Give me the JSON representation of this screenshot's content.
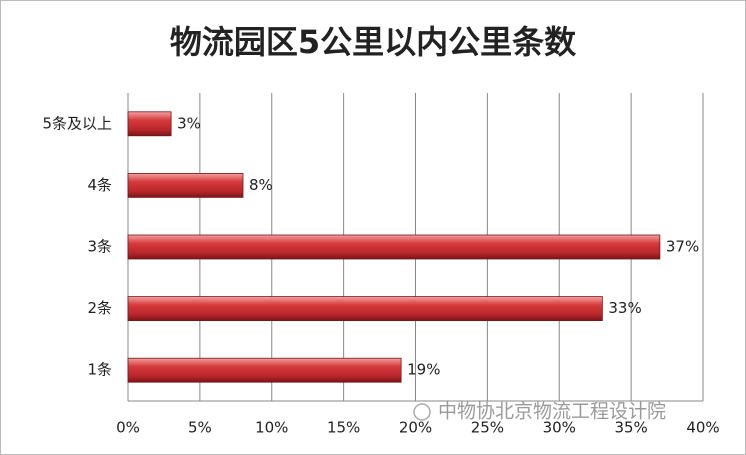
{
  "chart_data": {
    "type": "bar",
    "orientation": "horizontal",
    "title": "物流园区5公里以内公里条数",
    "categories": [
      "5条及以上",
      "4条",
      "3条",
      "2条",
      "1条"
    ],
    "values": [
      3,
      8,
      37,
      33,
      19
    ],
    "value_labels": [
      "3%",
      "8%",
      "37%",
      "33%",
      "19%"
    ],
    "color": "#c0282b",
    "xlim": [
      0,
      40
    ],
    "xticks": [
      {
        "value": 0,
        "label": "0%"
      },
      {
        "value": 5,
        "label": "5%"
      },
      {
        "value": 10,
        "label": "10%"
      },
      {
        "value": 15,
        "label": "15%"
      },
      {
        "value": 20,
        "label": "20%"
      },
      {
        "value": 25,
        "label": "25%"
      },
      {
        "value": 30,
        "label": "30%"
      },
      {
        "value": 35,
        "label": "35%"
      },
      {
        "value": 40,
        "label": "40%"
      }
    ],
    "grid": true,
    "watermark": "中物协北京物流工程设计院"
  }
}
